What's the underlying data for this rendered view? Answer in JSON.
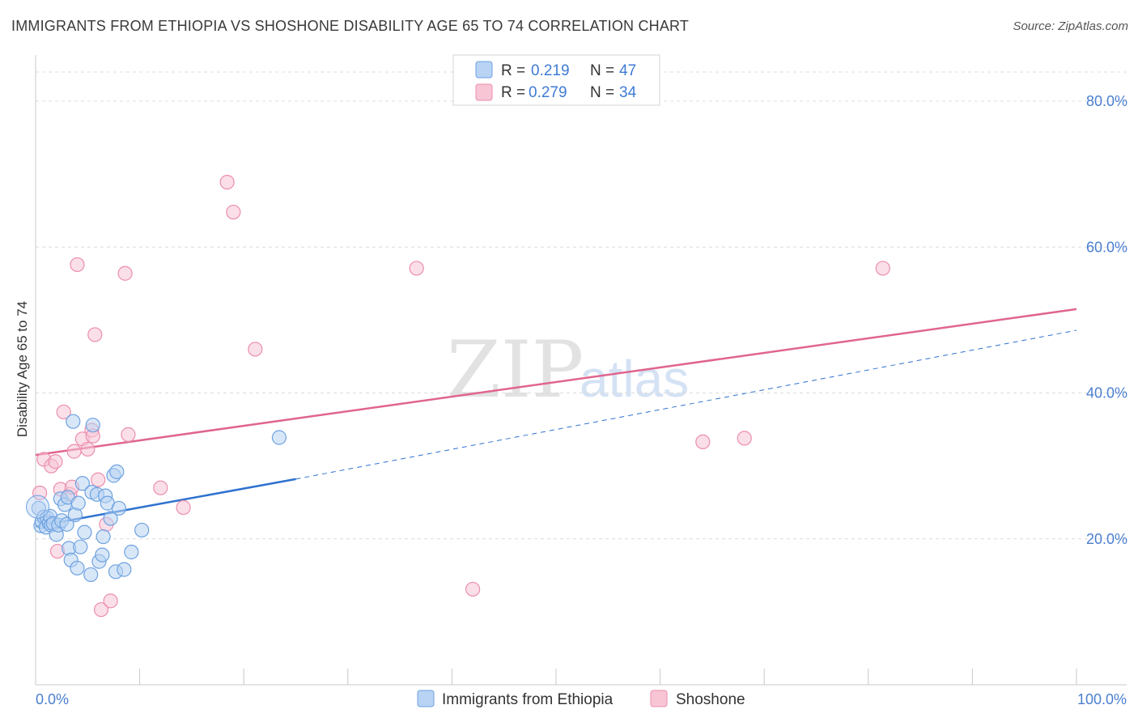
{
  "title": "IMMIGRANTS FROM ETHIOPIA VS SHOSHONE DISABILITY AGE 65 TO 74 CORRELATION CHART",
  "source": "Source: ZipAtlas.com",
  "watermark": {
    "part1": "ZIP",
    "part2": "atlas"
  },
  "colors": {
    "blue_fill": "#b8d3f3",
    "blue_stroke": "#6ea2e0",
    "blue_line": "#2f72cf",
    "pink_fill": "#f8c5d5",
    "pink_stroke": "#eb8ead",
    "pink_line": "#e0658e",
    "grid": "#dcdcdc",
    "tick_text": "#4a7fd0"
  },
  "legend": {
    "r_label": "R =",
    "n_label": "N =",
    "series1": {
      "r": "0.219",
      "n": "47"
    },
    "series2": {
      "r": "0.279",
      "n": "34"
    }
  },
  "chart_data": {
    "type": "scatter",
    "title": "IMMIGRANTS FROM ETHIOPIA VS SHOSHONE DISABILITY AGE 65 TO 74 CORRELATION CHART",
    "xlabel": "",
    "ylabel": "Disability Age 65 to 74",
    "xlim": [
      0,
      100
    ],
    "ylim": [
      0,
      85
    ],
    "x_tick_labels": [
      "0.0%",
      "100.0%"
    ],
    "y_ticks": [
      20,
      40,
      60,
      80
    ],
    "y_tick_labels": [
      "20.0%",
      "40.0%",
      "60.0%",
      "80.0%"
    ],
    "series": [
      {
        "name": "Immigrants from Ethiopia",
        "r": 0.219,
        "n": 47,
        "trend": {
          "x0": 0,
          "y0": 21.7,
          "x1": 25,
          "y1": 28.2,
          "dashed_to_x": 100,
          "dashed_to_y": 48.6
        },
        "points": [
          [
            0.3,
            24.2
          ],
          [
            0.5,
            21.8
          ],
          [
            0.6,
            22.4
          ],
          [
            0.8,
            23.0
          ],
          [
            1.0,
            21.6
          ],
          [
            1.1,
            22.9
          ],
          [
            1.3,
            22.2
          ],
          [
            1.4,
            23.1
          ],
          [
            1.5,
            21.9
          ],
          [
            1.7,
            22.1
          ],
          [
            2.0,
            20.6
          ],
          [
            2.2,
            21.9
          ],
          [
            2.4,
            25.5
          ],
          [
            2.5,
            22.5
          ],
          [
            2.8,
            24.7
          ],
          [
            3.0,
            22.0
          ],
          [
            3.1,
            25.7
          ],
          [
            3.2,
            18.7
          ],
          [
            3.4,
            17.1
          ],
          [
            3.6,
            36.1
          ],
          [
            3.8,
            23.3
          ],
          [
            4.0,
            16.0
          ],
          [
            4.1,
            24.9
          ],
          [
            4.3,
            18.9
          ],
          [
            4.5,
            27.6
          ],
          [
            4.7,
            20.9
          ],
          [
            5.3,
            15.1
          ],
          [
            5.4,
            26.4
          ],
          [
            5.5,
            35.6
          ],
          [
            5.9,
            26.1
          ],
          [
            6.1,
            16.9
          ],
          [
            6.4,
            17.8
          ],
          [
            6.5,
            20.3
          ],
          [
            6.7,
            25.9
          ],
          [
            6.9,
            24.9
          ],
          [
            7.2,
            22.8
          ],
          [
            7.5,
            28.7
          ],
          [
            7.7,
            15.5
          ],
          [
            7.8,
            29.2
          ],
          [
            8.0,
            24.2
          ],
          [
            8.5,
            15.8
          ],
          [
            9.2,
            18.2
          ],
          [
            10.2,
            21.2
          ],
          [
            23.4,
            33.9
          ]
        ]
      },
      {
        "name": "Shoshone",
        "r": 0.279,
        "n": 34,
        "trend": {
          "x0": 0,
          "y0": 31.5,
          "x1": 100,
          "y1": 51.5
        },
        "points": [
          [
            0.4,
            26.3
          ],
          [
            0.8,
            30.9
          ],
          [
            1.5,
            30.0
          ],
          [
            1.9,
            30.6
          ],
          [
            2.1,
            18.3
          ],
          [
            2.4,
            26.8
          ],
          [
            2.7,
            37.4
          ],
          [
            3.3,
            26.1
          ],
          [
            3.5,
            27.1
          ],
          [
            3.7,
            32.0
          ],
          [
            4.0,
            57.6
          ],
          [
            4.5,
            33.7
          ],
          [
            5.0,
            32.3
          ],
          [
            5.4,
            34.9
          ],
          [
            5.5,
            34.1
          ],
          [
            5.7,
            48.0
          ],
          [
            6.0,
            28.1
          ],
          [
            6.3,
            10.3
          ],
          [
            6.8,
            22.0
          ],
          [
            7.2,
            11.5
          ],
          [
            8.6,
            56.4
          ],
          [
            8.9,
            34.3
          ],
          [
            12.0,
            27.0
          ],
          [
            14.2,
            24.3
          ],
          [
            18.4,
            68.9
          ],
          [
            19.0,
            64.8
          ],
          [
            21.1,
            46.0
          ],
          [
            36.6,
            57.1
          ],
          [
            42.0,
            13.1
          ],
          [
            64.1,
            33.3
          ],
          [
            68.1,
            33.8
          ],
          [
            81.4,
            57.1
          ]
        ]
      }
    ]
  },
  "bottom_legend": {
    "series1": "Immigrants from Ethiopia",
    "series2": "Shoshone"
  }
}
